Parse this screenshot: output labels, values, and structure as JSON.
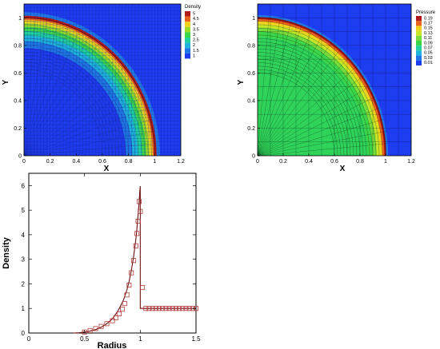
{
  "chart_data": [
    {
      "type": "heatmap",
      "title": "",
      "xlabel": "X",
      "ylabel": "Y",
      "xlim": [
        0,
        1.2
      ],
      "ylim": [
        0,
        1.1
      ],
      "xticks": [
        "0",
        "0.2",
        "0.4",
        "0.6",
        "0.8",
        "1",
        "1.2"
      ],
      "yticks": [
        "0",
        "0.2",
        "0.4",
        "0.6",
        "0.8",
        "1"
      ],
      "legend": {
        "title": "Density",
        "placement": "top-right",
        "levels": [
          "5",
          "4.5",
          "4",
          "3.5",
          "3",
          "2.5",
          "2",
          "1.5",
          "1"
        ],
        "colors": [
          "#b11a1a",
          "#e8641e",
          "#f0d21e",
          "#9adc28",
          "#3cd64a",
          "#20d2a0",
          "#1eb4dc",
          "#1e78e6",
          "#1e3cf0"
        ]
      },
      "shock_radius": 1.0,
      "background_color": "#1e3cf0"
    },
    {
      "type": "heatmap",
      "title": "",
      "xlabel": "X",
      "ylabel": "Y",
      "xlim": [
        0,
        1.2
      ],
      "ylim": [
        0,
        1.1
      ],
      "xticks": [
        "0",
        "0.2",
        "0.4",
        "0.6",
        "0.8",
        "1",
        "1.2"
      ],
      "yticks": [
        "0",
        "0.2",
        "0.4",
        "0.6",
        "0.8",
        "1"
      ],
      "legend": {
        "title": "Pressure",
        "placement": "top-right",
        "levels": [
          "0.19",
          "0.17",
          "0.15",
          "0.13",
          "0.11",
          "0.09",
          "0.07",
          "0.05",
          "0.03",
          "0.01"
        ],
        "colors": [
          "#b11a1a",
          "#e8641e",
          "#f0d21e",
          "#c8e628",
          "#78dc3c",
          "#3cd64a",
          "#20d2a0",
          "#1eb4dc",
          "#1e78e6",
          "#1e3cf0"
        ]
      },
      "shock_radius": 1.0,
      "background_color": "#1e3cf0"
    },
    {
      "type": "line",
      "title": "",
      "xlabel": "Radius",
      "ylabel": "Density",
      "xlim": [
        0,
        1.5
      ],
      "ylim": [
        0,
        6.5
      ],
      "xticks": [
        "0",
        "0.5",
        "1",
        "1.5"
      ],
      "yticks": [
        "0",
        "1",
        "2",
        "3",
        "4",
        "5",
        "6"
      ],
      "series": [
        {
          "kind": "line",
          "color": "#6b1010",
          "x": [
            0.4,
            0.45,
            0.5,
            0.55,
            0.6,
            0.65,
            0.7,
            0.75,
            0.8,
            0.85,
            0.88,
            0.9,
            0.92,
            0.94,
            0.96,
            0.97,
            0.98,
            0.99,
            0.995,
            1.0,
            1.0,
            1.01,
            1.5
          ],
          "y": [
            0.0,
            0.01,
            0.04,
            0.08,
            0.14,
            0.24,
            0.38,
            0.58,
            0.9,
            1.35,
            1.75,
            2.1,
            2.55,
            3.1,
            3.8,
            4.25,
            4.8,
            5.35,
            5.7,
            5.98,
            1.0,
            1.0,
            1.0
          ]
        },
        {
          "kind": "markers",
          "marker": "square",
          "color": "#b03a3a",
          "x": [
            0.5,
            0.55,
            0.6,
            0.65,
            0.7,
            0.75,
            0.78,
            0.81,
            0.84,
            0.86,
            0.88,
            0.9,
            0.92,
            0.94,
            0.96,
            0.97,
            0.98,
            0.99,
            1.0,
            1.02,
            1.05,
            1.08,
            1.11,
            1.14,
            1.17,
            1.2,
            1.23,
            1.26,
            1.29,
            1.32,
            1.35,
            1.38,
            1.41,
            1.44,
            1.47,
            1.5
          ],
          "y": [
            0.04,
            0.1,
            0.18,
            0.27,
            0.38,
            0.5,
            0.62,
            0.78,
            0.97,
            1.2,
            1.55,
            1.95,
            2.45,
            2.95,
            3.55,
            4.05,
            4.55,
            5.35,
            4.95,
            1.85,
            1.0,
            1.0,
            1.0,
            1.0,
            1.0,
            1.0,
            1.0,
            1.0,
            1.0,
            1.0,
            1.0,
            1.0,
            1.0,
            1.0,
            1.0,
            1.0
          ]
        }
      ]
    }
  ]
}
